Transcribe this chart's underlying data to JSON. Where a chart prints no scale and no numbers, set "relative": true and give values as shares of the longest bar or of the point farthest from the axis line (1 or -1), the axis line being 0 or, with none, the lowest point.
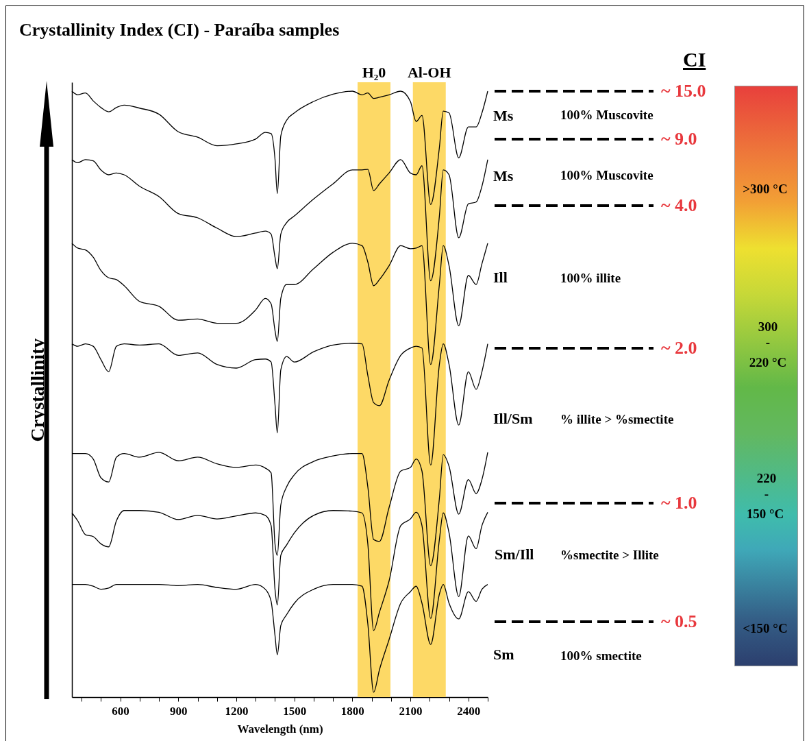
{
  "chart_data": [
    {
      "type": "line",
      "title": "Crystallinity Index (CI) - Paraíba samples",
      "xlabel": "Wavelength (nm)",
      "ylabel": "Crystallinity",
      "relative": true,
      "x": [
        350,
        380,
        420,
        460,
        500,
        540,
        580,
        620,
        700,
        800,
        900,
        1000,
        1100,
        1200,
        1300,
        1350,
        1380,
        1400,
        1412,
        1430,
        1460,
        1500,
        1600,
        1700,
        1800,
        1850,
        1880,
        1910,
        1940,
        1990,
        2050,
        2100,
        2130,
        2160,
        2205,
        2250,
        2270,
        2300,
        2350,
        2400,
        2440,
        2470,
        2500
      ],
      "xlim": [
        350,
        2500
      ],
      "xticks": [
        {
          "value": 400,
          "label": null
        },
        {
          "value": 500,
          "label": null
        },
        600,
        {
          "value": 700,
          "label": null
        },
        {
          "value": 800,
          "label": null
        },
        900,
        {
          "value": 1000,
          "label": null
        },
        {
          "value": 1100,
          "label": null
        },
        1200,
        {
          "value": 1300,
          "label": null
        },
        {
          "value": 1400,
          "label": null
        },
        1500,
        {
          "value": 1600,
          "label": null
        },
        {
          "value": 1700,
          "label": null
        },
        1800,
        {
          "value": 1900,
          "label": null
        },
        {
          "value": 2000,
          "label": null
        },
        2100,
        {
          "value": 2200,
          "label": null
        },
        {
          "value": 2300,
          "label": null
        },
        2400,
        {
          "value": 2500,
          "label": null
        }
      ],
      "series": [
        {
          "color": "#000000",
          "values": [
            1,
            0.994,
            0.997,
            0.984,
            0.973,
            0.966,
            0.973,
            0.977,
            0.972,
            0.962,
            0.933,
            0.924,
            0.91,
            0.913,
            0.921,
            0.932,
            0.93,
            0.888,
            0.831,
            0.926,
            0.952,
            0.964,
            0.983,
            0.995,
            1,
            0.994,
            0.997,
            0.988,
            0.99,
            0.994,
            1,
            0.983,
            0.95,
            0.96,
            0.813,
            0.907,
            0.967,
            0.964,
            0.89,
            0.941,
            0.941,
            0.964,
            1
          ]
        },
        {
          "color": "#000000",
          "values": [
            0.887,
            0.882,
            0.887,
            0.885,
            0.87,
            0.862,
            0.865,
            0.862,
            0.843,
            0.826,
            0.798,
            0.791,
            0.774,
            0.76,
            0.766,
            0.769,
            0.764,
            0.726,
            0.707,
            0.764,
            0.783,
            0.794,
            0.822,
            0.847,
            0.87,
            0.87,
            0.871,
            0.836,
            0.847,
            0.865,
            0.887,
            0.865,
            0.862,
            0.877,
            0.687,
            0.794,
            0.87,
            0.862,
            0.758,
            0.814,
            0.817,
            0.843,
            0.887
          ]
        },
        {
          "color": "#000000",
          "values": [
            0.749,
            0.741,
            0.738,
            0.726,
            0.704,
            0.692,
            0.689,
            0.679,
            0.653,
            0.645,
            0.622,
            0.624,
            0.617,
            0.617,
            0.639,
            0.658,
            0.649,
            0.605,
            0.587,
            0.658,
            0.681,
            0.681,
            0.707,
            0.734,
            0.749,
            0.745,
            0.718,
            0.679,
            0.689,
            0.712,
            0.745,
            0.74,
            0.741,
            0.745,
            0.549,
            0.681,
            0.745,
            0.712,
            0.613,
            0.696,
            0.681,
            0.715,
            0.749
          ]
        },
        {
          "color": "#000000",
          "values": [
            0.583,
            0.579,
            0.583,
            0.579,
            0.557,
            0.537,
            0.579,
            0.583,
            0.581,
            0.583,
            0.564,
            0.568,
            0.549,
            0.543,
            0.557,
            0.558,
            0.553,
            0.483,
            0.436,
            0.54,
            0.562,
            0.553,
            0.57,
            0.581,
            0.584,
            0.583,
            0.531,
            0.486,
            0.481,
            0.523,
            0.564,
            0.576,
            0.579,
            0.576,
            0.383,
            0.549,
            0.583,
            0.549,
            0.449,
            0.537,
            0.508,
            0.537,
            0.583
          ]
        },
        {
          "color": "#000000",
          "values": [
            0.402,
            0.402,
            0.402,
            0.393,
            0.362,
            0.355,
            0.396,
            0.402,
            0.396,
            0.404,
            0.39,
            0.396,
            0.385,
            0.379,
            0.383,
            0.378,
            0.37,
            0.253,
            0.234,
            0.317,
            0.347,
            0.367,
            0.389,
            0.398,
            0.402,
            0.402,
            0.347,
            0.26,
            0.257,
            0.313,
            0.373,
            0.379,
            0.393,
            0.373,
            0.217,
            0.328,
            0.4,
            0.381,
            0.302,
            0.359,
            0.336,
            0.359,
            0.404
          ]
        },
        {
          "color": "#000000",
          "values": [
            0.304,
            0.291,
            0.268,
            0.265,
            0.253,
            0.248,
            0.291,
            0.308,
            0.308,
            0.305,
            0.293,
            0.3,
            0.294,
            0.299,
            0.304,
            0.3,
            0.283,
            0.178,
            0.152,
            0.234,
            0.251,
            0.271,
            0.3,
            0.308,
            0.307,
            0.304,
            0.253,
            0.11,
            0.14,
            0.192,
            0.283,
            0.294,
            0.305,
            0.283,
            0.13,
            0.26,
            0.304,
            0.271,
            0.166,
            0.266,
            0.245,
            0.283,
            0.305
          ]
        },
        {
          "color": "#000000",
          "values": [
            0.186,
            0.186,
            0.186,
            0.183,
            0.178,
            0.18,
            0.186,
            0.186,
            0.186,
            0.186,
            0.184,
            0.186,
            0.181,
            0.178,
            0.186,
            0.178,
            0.158,
            0.102,
            0.07,
            0.118,
            0.136,
            0.155,
            0.178,
            0.186,
            0.186,
            0.183,
            0.121,
            0.008,
            0.045,
            0.095,
            0.155,
            0.174,
            0.183,
            0.155,
            0.087,
            0.17,
            0.186,
            0.155,
            0.129,
            0.174,
            0.158,
            0.178,
            0.186
          ]
        }
      ],
      "bands": [
        {
          "axis": "x",
          "from": 1827,
          "to": 1997,
          "label": "H₂0",
          "color": "#fdd966"
        },
        {
          "axis": "x",
          "from": 2113,
          "to": 2283,
          "label": "Al-OH",
          "color": "#fdd966"
        }
      ]
    },
    {
      "type": "other",
      "title": "CI",
      "annotations": [
        "~ 15.0",
        "~ 9.0",
        "~ 4.0",
        "~ 2.0",
        "~ 1.0",
        "~ 0.5",
        "Ms",
        "100% Muscovite",
        "Ms",
        "100% Muscovite",
        "Ill",
        "100% illite",
        "Ill/Sm",
        "% illite > %smectite",
        "Sm/Ill",
        "%smectite > Illite",
        "Sm",
        "100% smectite",
        ">300 °C",
        "300",
        "-",
        "220 °C",
        "220",
        "-",
        "150 °C",
        "<150 °C"
      ]
    }
  ]
}
